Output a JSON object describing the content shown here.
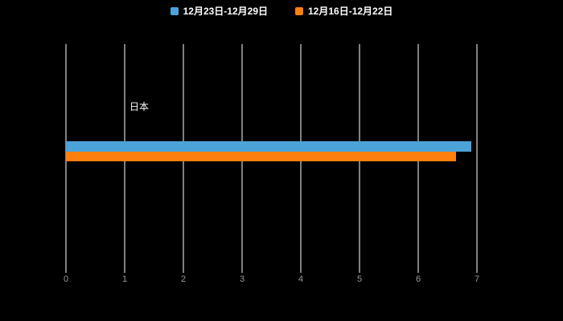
{
  "chart_data": {
    "type": "bar",
    "orientation": "horizontal",
    "title": "",
    "categories": [
      "日本"
    ],
    "series": [
      {
        "name": "12月23日-12月29日",
        "color": "#4BA3D8",
        "values": [
          6.9
        ]
      },
      {
        "name": "12月16日-12月22日",
        "color": "#FF7F0E",
        "values": [
          6.65
        ]
      }
    ],
    "xlim": [
      0,
      7
    ],
    "xticks": [
      0,
      1,
      2,
      3,
      4,
      5,
      6,
      7
    ],
    "grid": true,
    "gridline_color": "#ffffff",
    "background": "#000000",
    "legend_position": "top"
  },
  "colors": {
    "background": "#000000",
    "grid": "#ffffff",
    "tick_label": "#999999",
    "category_label": "#ffffff"
  }
}
